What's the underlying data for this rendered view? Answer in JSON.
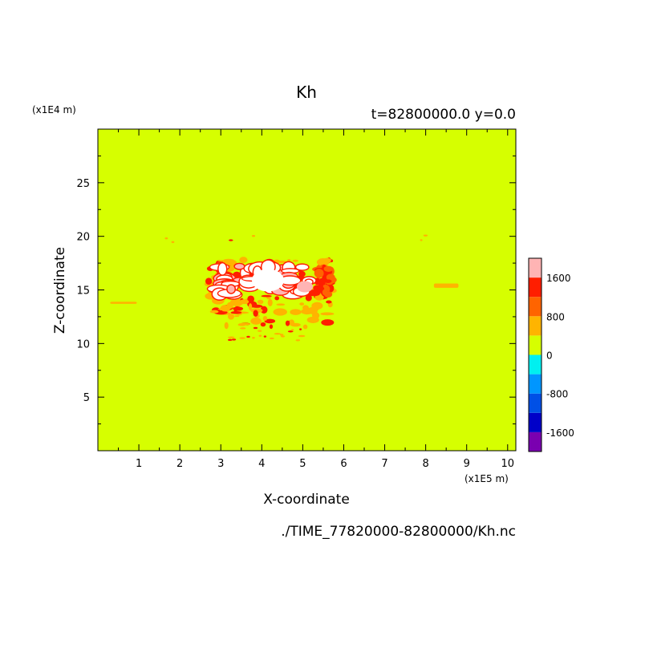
{
  "chart_data": {
    "type": "heatmap",
    "title": "Kh",
    "subtitle": "t=82800000.0 y=0.0",
    "xlabel": "X-coordinate",
    "ylabel": "Z-coordinate",
    "x_unit": "(x1E5 m)",
    "y_unit": "(x1E4 m)",
    "xlim": [
      0,
      10.2
    ],
    "ylim": [
      0,
      30
    ],
    "x_ticks": [
      "1",
      "2",
      "3",
      "4",
      "5",
      "6",
      "7",
      "8",
      "9",
      "10"
    ],
    "y_ticks": [
      "5",
      "10",
      "15",
      "20",
      "25"
    ],
    "background_level": "0",
    "colorbar": {
      "colors": [
        "#7a00b0",
        "#0000c8",
        "#0050e6",
        "#0096ff",
        "#00f0f0",
        "#d6ff00",
        "#ffb400",
        "#ff6400",
        "#ff1e00",
        "#ffb4b4"
      ],
      "labels": [
        "1600",
        "800",
        "0",
        "-800",
        "-1600"
      ],
      "label_values": [
        1600,
        800,
        0,
        -800,
        -1600
      ]
    },
    "features": [
      {
        "level": "high",
        "color": "#ff1e00",
        "x_range": [
          2.7,
          5.7
        ],
        "z_range": [
          11.5,
          17.8
        ]
      },
      {
        "level": "peak",
        "color": "#ffffff",
        "x_range": [
          2.7,
          5.3
        ],
        "z_range": [
          13.0,
          17.5
        ]
      },
      {
        "level": "moderate",
        "color": "#ffb400",
        "x_range": [
          8.2,
          8.8
        ],
        "z_range": [
          15.2,
          15.6
        ]
      },
      {
        "level": "moderate",
        "color": "#ffb400",
        "x_range": [
          0.3,
          0.95
        ],
        "z_range": [
          13.7,
          13.9
        ]
      }
    ]
  },
  "footer": {
    "source": "./TIME_77820000-82800000/Kh.nc"
  }
}
